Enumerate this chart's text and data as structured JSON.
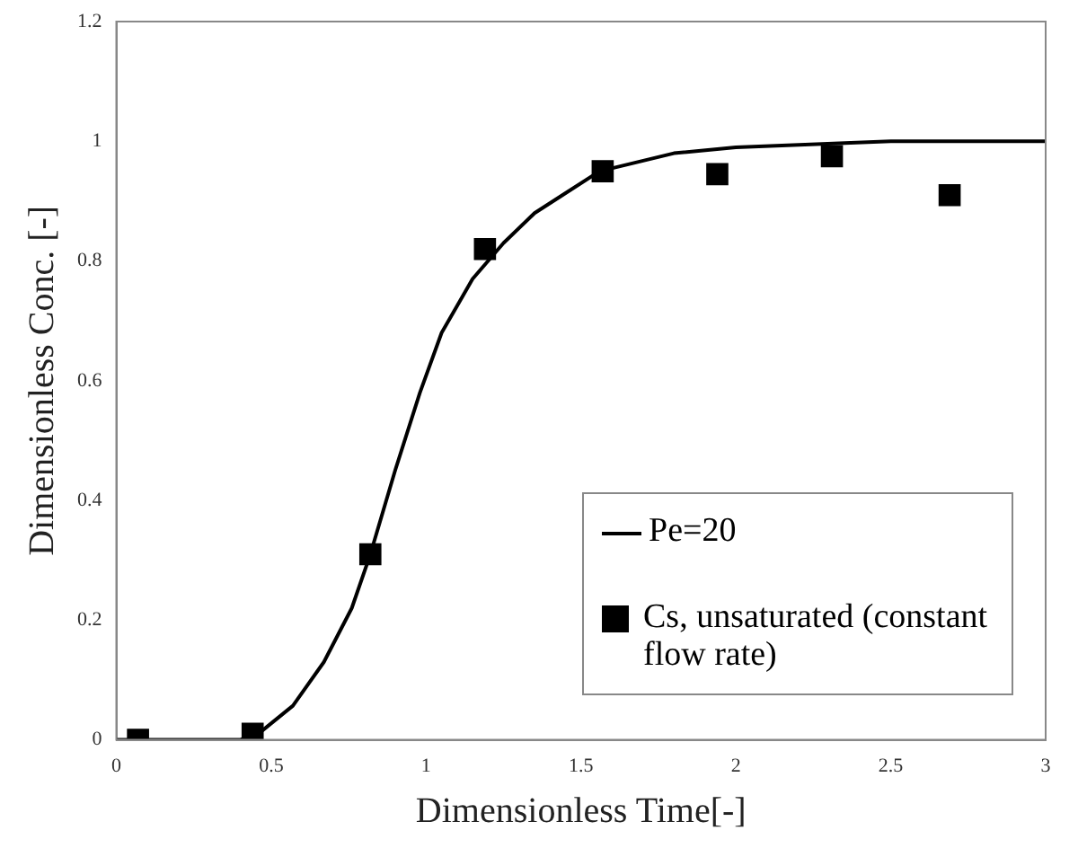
{
  "chart_data": {
    "type": "scatter",
    "xlabel": "Dimensionless Time[-]",
    "ylabel": "Dimensionless Conc. [-]",
    "xlim": [
      0,
      3
    ],
    "xticks": [
      0,
      0.5,
      1,
      1.5,
      2,
      2.5,
      3
    ],
    "ylim": [
      0,
      1.2
    ],
    "yticks": [
      0,
      0.2,
      0.4,
      0.6,
      0.8,
      1,
      1.2
    ],
    "grid": false,
    "legend": "bottom right",
    "series": [
      {
        "name": "Pe=20",
        "type": "line",
        "color": "#000000",
        "marker": "none",
        "line_style": "solid",
        "x": [
          0,
          0.4,
          0.47,
          0.57,
          0.67,
          0.76,
          0.82,
          0.9,
          0.98,
          1.05,
          1.15,
          1.25,
          1.35,
          1.44,
          1.56,
          1.8,
          2,
          2.5,
          3
        ],
        "values": [
          0,
          0,
          0.015,
          0.057,
          0.13,
          0.22,
          0.31,
          0.45,
          0.58,
          0.68,
          0.77,
          0.83,
          0.88,
          0.91,
          0.95,
          0.98,
          0.99,
          1,
          1
        ]
      },
      {
        "name": "Cs, unsaturated (constant flow rate)",
        "type": "scatter",
        "color": "#000000",
        "marker": "square",
        "x": [
          0.07,
          0.44,
          0.82,
          1.19,
          1.57,
          1.94,
          2.31,
          2.69
        ],
        "values": [
          0,
          0.01,
          0.31,
          0.82,
          0.95,
          0.945,
          0.975,
          0.91
        ]
      }
    ]
  }
}
